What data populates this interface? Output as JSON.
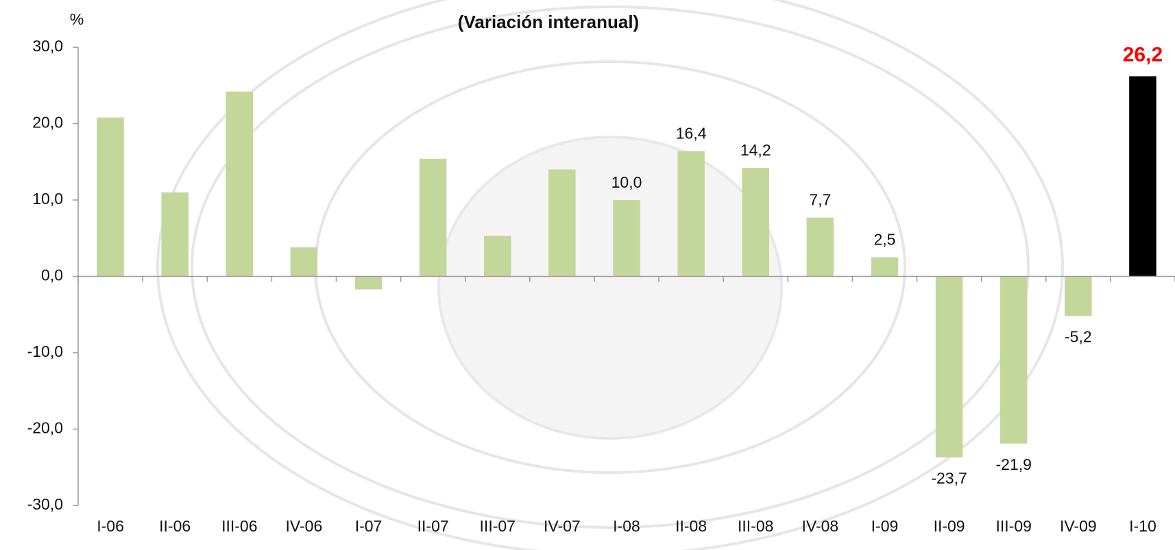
{
  "chart_data": {
    "type": "bar",
    "title": "(Variación interanual)",
    "y_unit": "%",
    "categories": [
      "I-06",
      "II-06",
      "III-06",
      "IV-06",
      "I-07",
      "II-07",
      "III-07",
      "IV-07",
      "I-08",
      "II-08",
      "III-08",
      "IV-08",
      "I-09",
      "II-09",
      "III-09",
      "IV-09",
      "I-10"
    ],
    "values": [
      20.8,
      11.0,
      24.2,
      3.8,
      -1.7,
      15.4,
      5.3,
      14.0,
      10.0,
      16.4,
      14.2,
      7.7,
      2.5,
      -23.7,
      -21.9,
      -5.2,
      26.2
    ],
    "value_labels": [
      null,
      null,
      null,
      null,
      null,
      null,
      null,
      null,
      "10,0",
      "16,4",
      "14,2",
      "7,7",
      "2,5",
      "-23,7",
      "-21,9",
      "-5,2",
      "26,2"
    ],
    "colors": [
      "#c4d79b",
      "#c4d79b",
      "#c4d79b",
      "#c4d79b",
      "#c4d79b",
      "#c4d79b",
      "#c4d79b",
      "#c4d79b",
      "#c4d79b",
      "#c4d79b",
      "#c4d79b",
      "#c4d79b",
      "#c4d79b",
      "#c4d79b",
      "#c4d79b",
      "#c4d79b",
      "#000000"
    ],
    "highlight_label_color": "#ff0000",
    "ylim": [
      -30,
      30
    ],
    "yticks": [
      {
        "value": -30,
        "label": "-30,0"
      },
      {
        "value": -20,
        "label": "-20,0"
      },
      {
        "value": -10,
        "label": "-10,0"
      },
      {
        "value": 0,
        "label": "0,0"
      },
      {
        "value": 10,
        "label": "10,0"
      },
      {
        "value": 20,
        "label": "20,0"
      },
      {
        "value": 30,
        "label": "30,0"
      }
    ]
  }
}
